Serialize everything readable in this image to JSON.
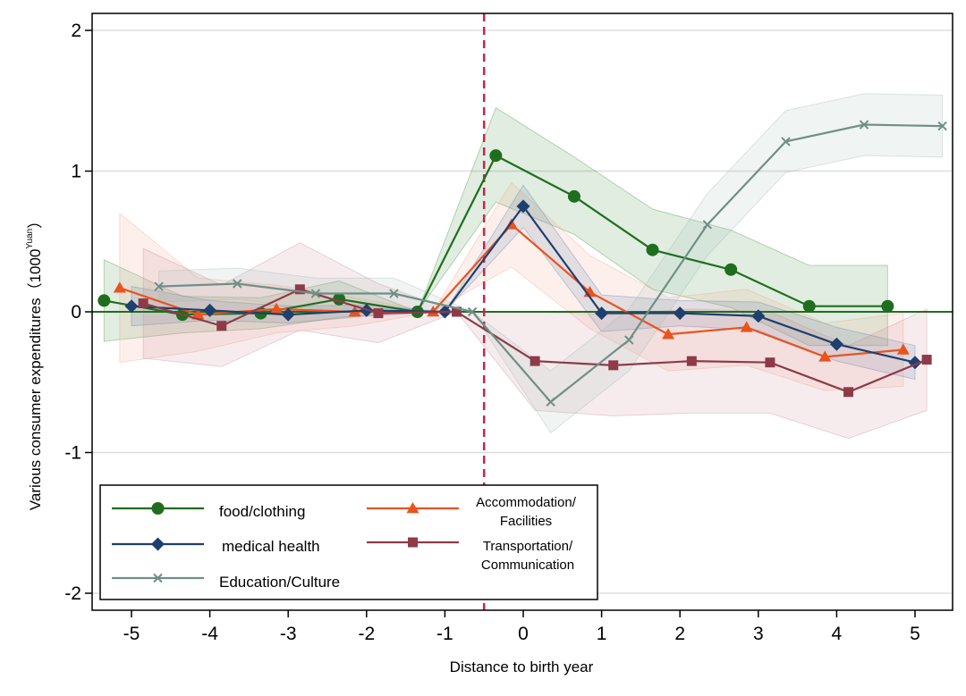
{
  "chart_data": {
    "type": "line",
    "xlabel": "Distance to birth year",
    "ylabel": "Various consumer expenditures（1000",
    "ylabel_unit": "Yuan",
    "ylabel_close": "）",
    "xlim": [
      -5.5,
      5.5
    ],
    "ylim": [
      -2.1,
      2.1
    ],
    "x_ticks": [
      -5,
      -4,
      -3,
      -2,
      -1,
      0,
      1,
      2,
      3,
      4,
      5
    ],
    "x_tick_labels": [
      "-5",
      "-4",
      "-3",
      "-2",
      "-1",
      "0",
      "1",
      "2",
      "3",
      "4",
      "5"
    ],
    "y_ticks": [
      -2,
      -1,
      0,
      1,
      2
    ],
    "y_tick_labels": [
      "-2",
      "-1",
      "0",
      "1",
      "2"
    ],
    "grid": true,
    "reference_line": {
      "x": -0.5,
      "color": "#c8254c",
      "style": "dashed"
    },
    "zero_line": {
      "y": 0,
      "color": "#1f6e1f"
    },
    "legend_position": "bottom-left",
    "series": [
      {
        "name": "food/clothing",
        "color": "#1f6e1f",
        "band_color": "#3e8e3e",
        "marker": "circle",
        "x": [
          -5.35,
          -4.35,
          -3.35,
          -2.35,
          -1.35,
          -0.35,
          0.65,
          1.65,
          2.65,
          3.65,
          4.65
        ],
        "y": [
          0.08,
          -0.02,
          -0.01,
          0.09,
          0.0,
          1.11,
          0.82,
          0.44,
          0.3,
          0.04,
          0.04
        ],
        "lower": [
          -0.21,
          -0.15,
          -0.12,
          -0.04,
          0.0,
          0.78,
          0.55,
          0.16,
          0.03,
          -0.24,
          -0.24
        ],
        "upper": [
          0.37,
          0.11,
          0.1,
          0.22,
          0.0,
          1.45,
          1.1,
          0.73,
          0.58,
          0.33,
          0.33
        ]
      },
      {
        "name": "Accommodation/ Facilities",
        "legend_lines": [
          "Accommodation/",
          "Facilities"
        ],
        "color": "#e8531f",
        "band_color": "#f4a48a",
        "marker": "triangle",
        "x": [
          -5.15,
          -4.15,
          -3.15,
          -2.15,
          -1.15,
          -0.15,
          0.85,
          1.85,
          2.85,
          3.85,
          4.85
        ],
        "y": [
          0.17,
          -0.02,
          0.02,
          0.0,
          0.0,
          0.62,
          0.14,
          -0.16,
          -0.11,
          -0.32,
          -0.27
        ],
        "lower": [
          -0.36,
          -0.28,
          -0.15,
          -0.1,
          0.0,
          0.32,
          -0.12,
          -0.42,
          -0.38,
          -0.56,
          -0.53
        ],
        "upper": [
          0.7,
          0.24,
          0.19,
          0.1,
          0.0,
          0.92,
          0.4,
          0.1,
          0.16,
          -0.08,
          -0.01
        ]
      },
      {
        "name": "medical health",
        "color": "#1f3f6e",
        "band_color": "#5a7aa8",
        "marker": "diamond",
        "x": [
          -5.0,
          -4.0,
          -3.0,
          -2.0,
          -1.0,
          0.0,
          1.0,
          2.0,
          3.0,
          4.0,
          5.0
        ],
        "y": [
          0.04,
          0.01,
          -0.02,
          0.01,
          0.0,
          0.75,
          -0.01,
          -0.01,
          -0.03,
          -0.23,
          -0.36
        ],
        "lower": [
          -0.1,
          -0.06,
          -0.08,
          -0.03,
          0.0,
          0.6,
          -0.14,
          -0.1,
          -0.13,
          -0.35,
          -0.48
        ],
        "upper": [
          0.18,
          0.08,
          0.04,
          0.05,
          0.0,
          0.9,
          0.12,
          0.08,
          0.07,
          -0.11,
          -0.24
        ]
      },
      {
        "name": "Transportation/ Communication",
        "legend_lines": [
          "Transportation/",
          "Communication"
        ],
        "color": "#8e3a48",
        "band_color": "#c98a94",
        "marker": "square",
        "x": [
          -4.85,
          -3.85,
          -2.85,
          -1.85,
          -0.85,
          0.15,
          1.15,
          2.15,
          3.15,
          4.15,
          5.15
        ],
        "y": [
          0.06,
          -0.1,
          0.16,
          -0.01,
          0.0,
          -0.35,
          -0.38,
          -0.35,
          -0.36,
          -0.57,
          -0.34
        ],
        "lower": [
          -0.33,
          -0.39,
          -0.13,
          -0.22,
          0.0,
          -0.7,
          -0.74,
          -0.72,
          -0.72,
          -0.9,
          -0.7
        ],
        "upper": [
          0.45,
          0.19,
          0.49,
          0.2,
          0.0,
          0.0,
          -0.02,
          0.02,
          0.0,
          -0.24,
          0.02
        ]
      },
      {
        "name": "Education/Culture",
        "color": "#6f8f87",
        "band_color": "#9fb8b2",
        "marker": "x",
        "x": [
          -4.65,
          -3.65,
          -2.65,
          -1.65,
          -0.65,
          0.35,
          1.35,
          2.35,
          3.35,
          4.35,
          5.35
        ],
        "y": [
          0.18,
          0.2,
          0.13,
          0.13,
          0.0,
          -0.64,
          -0.2,
          0.62,
          1.21,
          1.33,
          1.32
        ],
        "lower": [
          0.07,
          0.09,
          0.02,
          0.02,
          0.0,
          -0.86,
          -0.42,
          0.4,
          0.99,
          1.11,
          1.1
        ],
        "upper": [
          0.29,
          0.31,
          0.24,
          0.24,
          0.0,
          -0.42,
          0.02,
          0.84,
          1.43,
          1.55,
          1.54
        ]
      }
    ]
  }
}
